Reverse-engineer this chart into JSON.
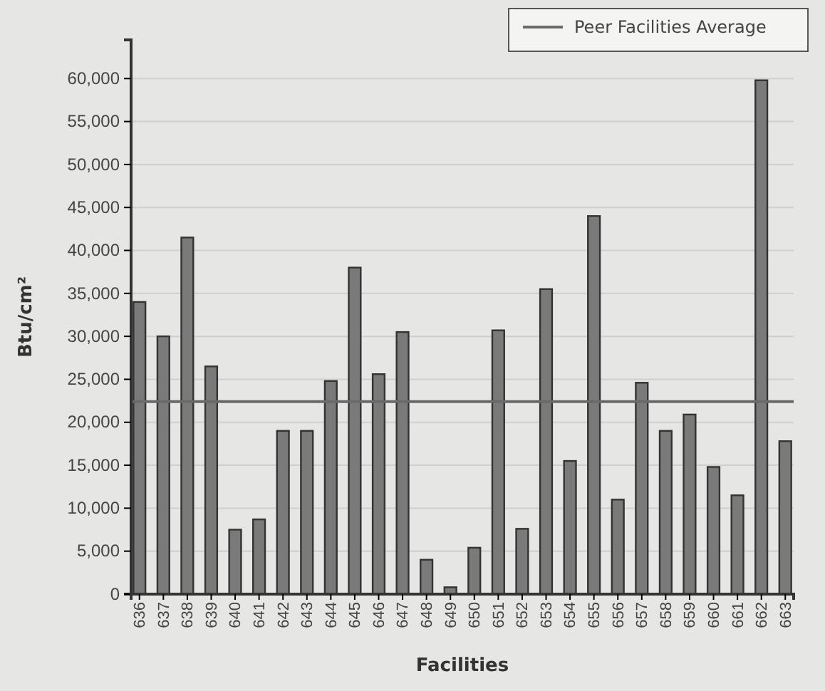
{
  "chart_data": {
    "type": "bar",
    "xlabel": "Facilities",
    "ylabel": "Btu/cm²",
    "categories": [
      "636",
      "637",
      "638",
      "639",
      "640",
      "641",
      "642",
      "643",
      "644",
      "645",
      "646",
      "647",
      "648",
      "649",
      "650",
      "651",
      "652",
      "653",
      "654",
      "655",
      "656",
      "657",
      "658",
      "659",
      "660",
      "661",
      "662",
      "663"
    ],
    "values": [
      34000,
      30000,
      41500,
      26500,
      7500,
      8700,
      19000,
      19000,
      24800,
      38000,
      25600,
      30500,
      4000,
      800,
      5400,
      30700,
      7600,
      35500,
      15500,
      44000,
      11000,
      24600,
      19000,
      20900,
      14800,
      11500,
      59800,
      17800
    ],
    "color": "#7a7a7a",
    "ylim": [
      0,
      64500
    ],
    "yticks": [
      {
        "value": 0,
        "label": "0"
      },
      {
        "value": 5000,
        "label": "5,000"
      },
      {
        "value": 10000,
        "label": "10,000"
      },
      {
        "value": 15000,
        "label": "15,000"
      },
      {
        "value": 20000,
        "label": "20,000"
      },
      {
        "value": 25000,
        "label": "25,000"
      },
      {
        "value": 30000,
        "label": "30,000"
      },
      {
        "value": 35000,
        "label": "35,000"
      },
      {
        "value": 40000,
        "label": "40,000"
      },
      {
        "value": 45000,
        "label": "45,000"
      },
      {
        "value": 50000,
        "label": "50,000"
      },
      {
        "value": 55000,
        "label": "55,000"
      },
      {
        "value": 60000,
        "label": "60,000"
      }
    ],
    "ref_lines": [
      {
        "axis": "y",
        "value": 22400,
        "label": "Peer Facilities Average",
        "color": "#6a6a6a"
      }
    ],
    "grid": "y",
    "legend": "top right"
  }
}
